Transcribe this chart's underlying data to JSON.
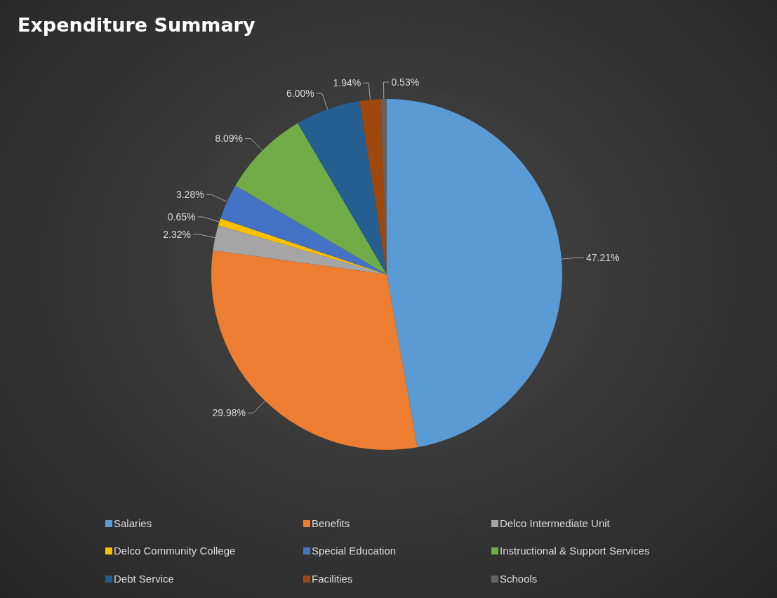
{
  "chart_data": {
    "type": "pie",
    "title": "Expenditure Summary",
    "categories": [
      "Salaries",
      "Benefits",
      "Delco Intermediate Unit",
      "Delco Community College",
      "Special Education",
      "Instructional & Support Services",
      "Debt Service",
      "Facilities",
      "Schools"
    ],
    "values": [
      47.21,
      29.98,
      2.32,
      0.65,
      3.28,
      8.09,
      6.0,
      1.94,
      0.53
    ],
    "value_labels": [
      "47.21%",
      "29.98%",
      "2.32%",
      "0.65%",
      "3.28%",
      "8.09%",
      "6.00%",
      "1.94%",
      "0.53%"
    ],
    "colors": [
      "#5b9bd5",
      "#ed7d31",
      "#a5a5a5",
      "#ffc000",
      "#4472c4",
      "#70ad47",
      "#255e91",
      "#9e480e",
      "#636363"
    ],
    "legend": "bottom"
  }
}
